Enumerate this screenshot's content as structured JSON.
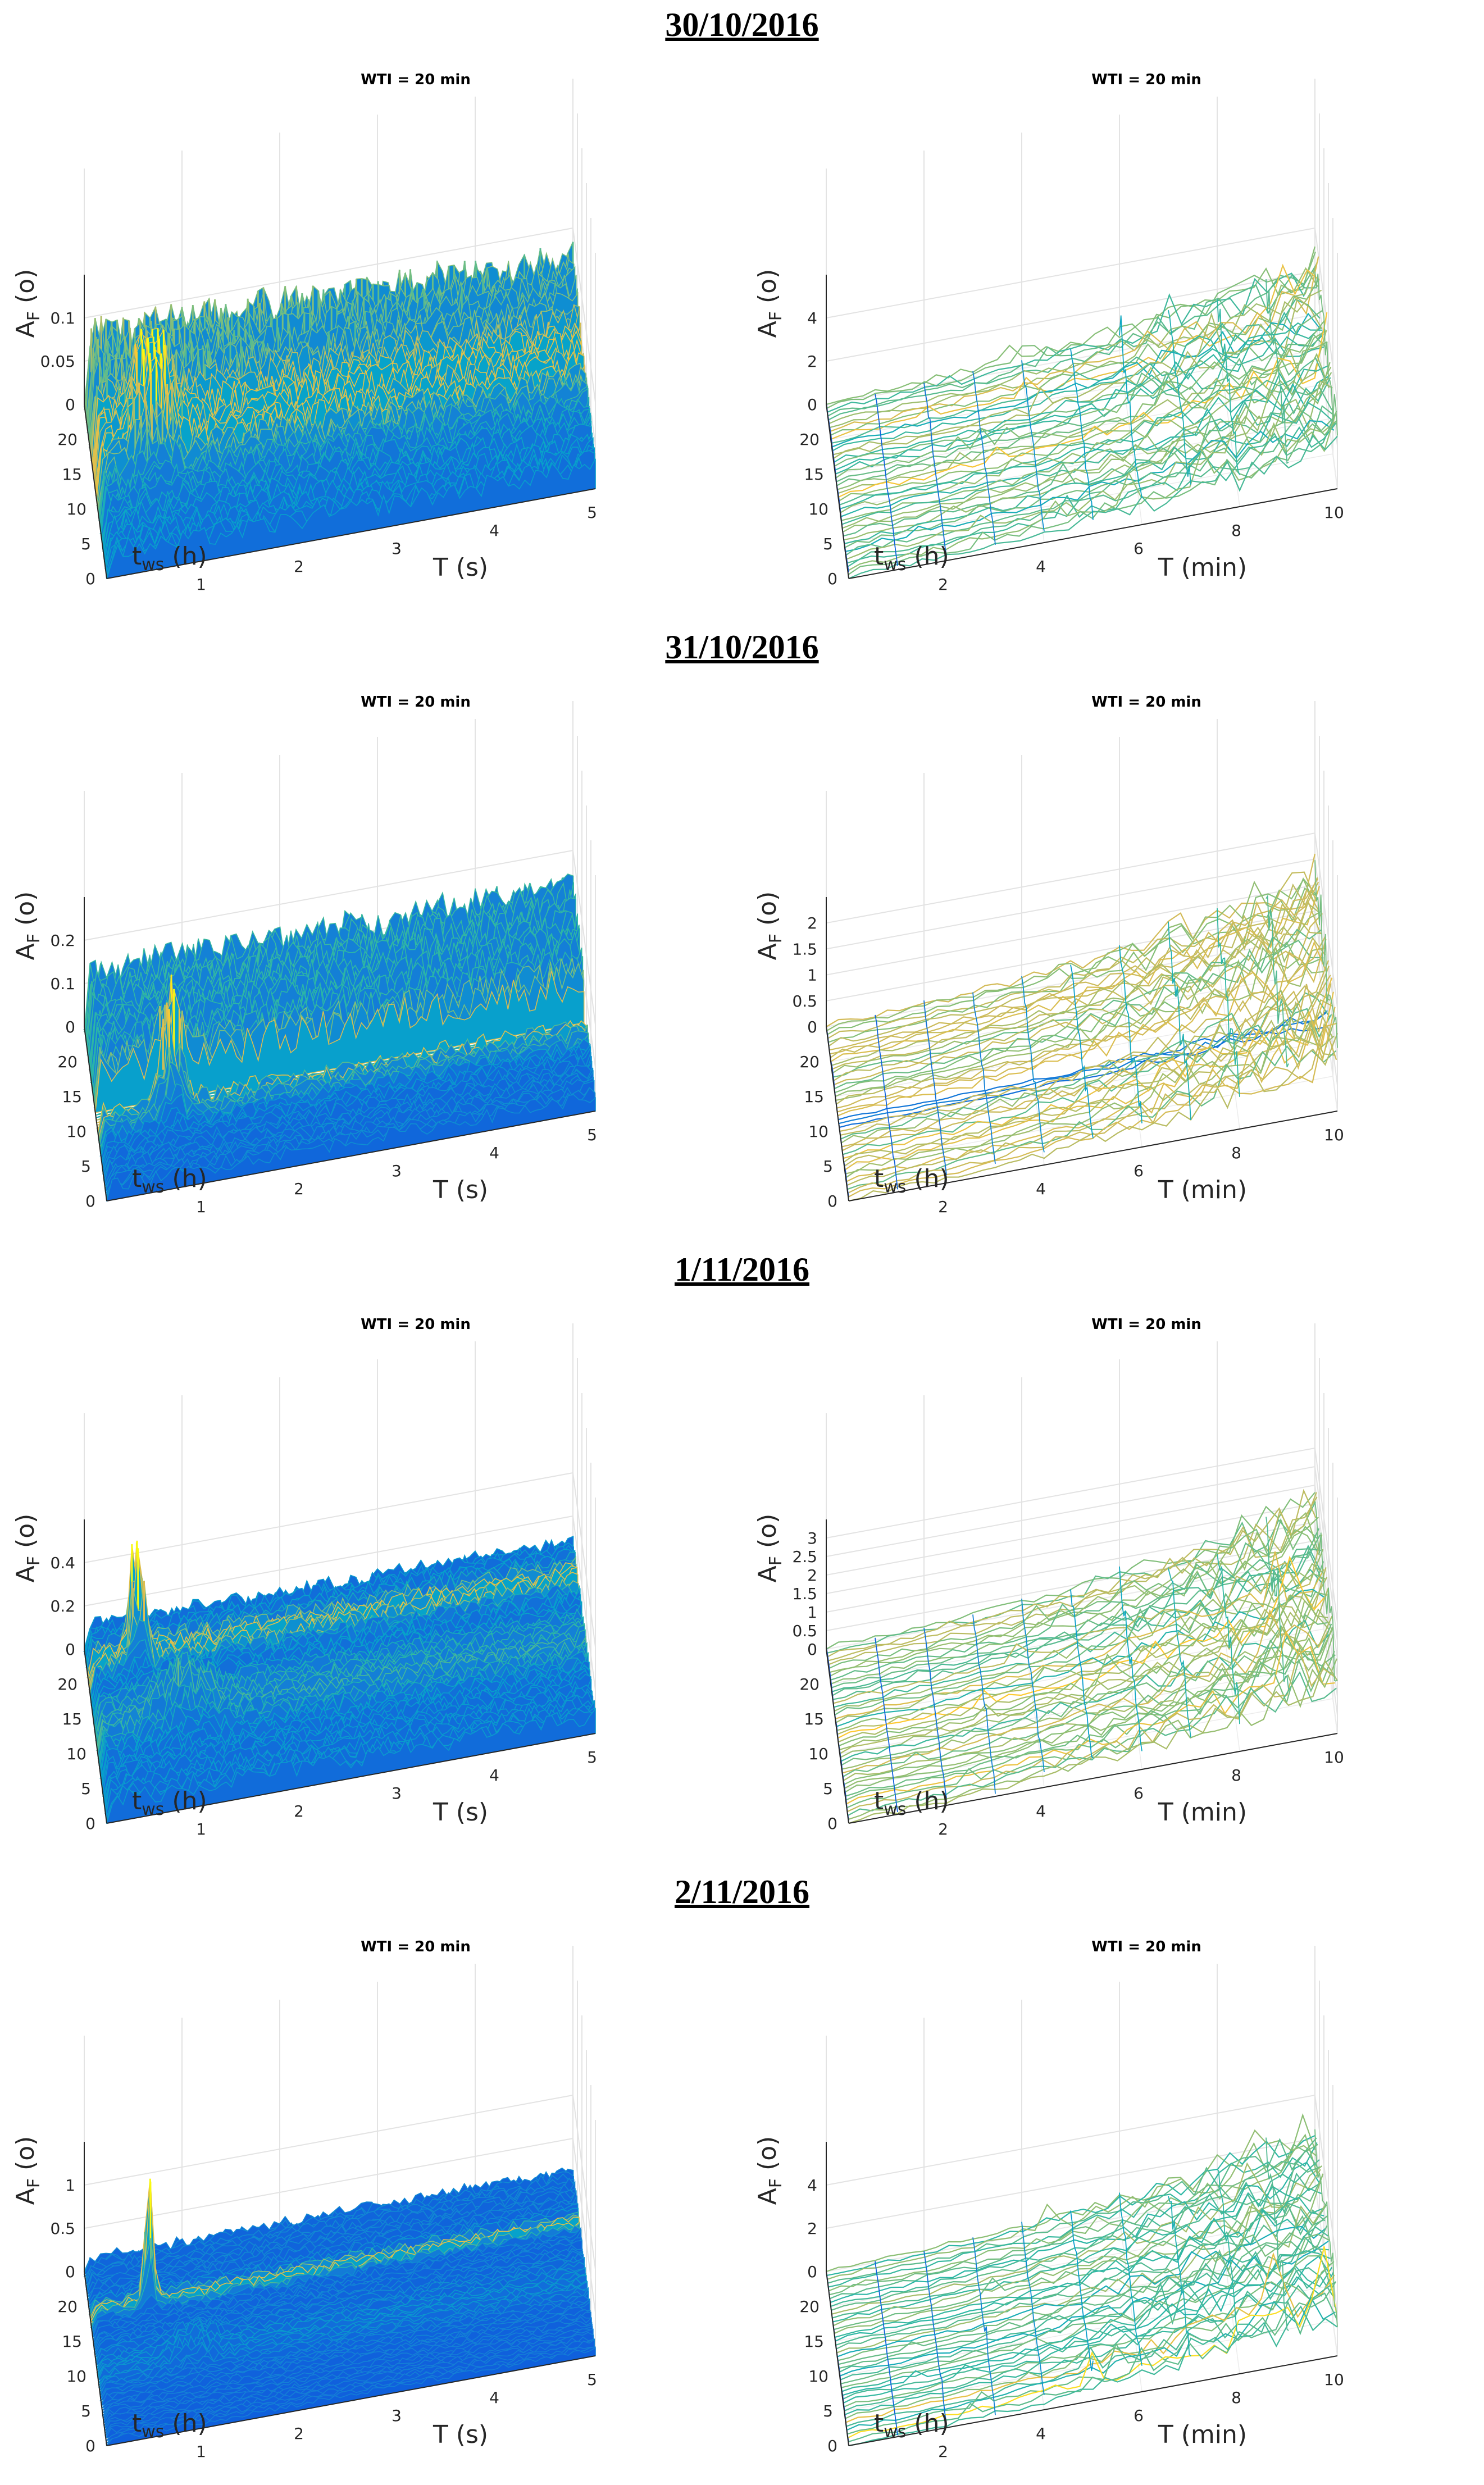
{
  "dates": [
    "30/10/2016",
    "31/10/2016",
    "1/11/2016",
    "2/11/2016"
  ],
  "colormap": [
    "#352a87",
    "#0f5cdd",
    "#1481d6",
    "#06a4ca",
    "#2eb7a4",
    "#87bf77",
    "#d1bb59",
    "#fec832",
    "#f9fb0e"
  ],
  "chart_data": [
    {
      "date": "30/10/2016",
      "type": "surface",
      "title": "WTI = 20 min",
      "zlabel": "A",
      "zlabel_sub": "F",
      "zlabel_unit": "(o)",
      "ylabel": "t",
      "ylabel_sub": "ws",
      "ylabel_unit": "(h)",
      "xlabel": "T (s)",
      "xlim": [
        0,
        5
      ],
      "ylim": [
        0,
        24
      ],
      "zlim": [
        0,
        0.11
      ],
      "xticks": [
        "1",
        "2",
        "3",
        "4",
        "5"
      ],
      "yticks": [
        "0",
        "5",
        "10",
        "15",
        "20"
      ],
      "zticks": [
        "0",
        "0.05",
        "0.1"
      ],
      "peak_value": 0.1
    },
    {
      "date": "30/10/2016",
      "type": "mesh",
      "title": "WTI = 20 min",
      "zlabel": "A",
      "zlabel_sub": "F",
      "zlabel_unit": "(o)",
      "ylabel": "t",
      "ylabel_sub": "ws",
      "ylabel_unit": "(h)",
      "xlabel": "T (min)",
      "xlim": [
        0,
        10
      ],
      "ylim": [
        0,
        24
      ],
      "zlim": [
        0,
        4
      ],
      "xticks": [
        "2",
        "4",
        "6",
        "8",
        "10"
      ],
      "yticks": [
        "0",
        "5",
        "10",
        "15",
        "20"
      ],
      "zticks": [
        "0",
        "2",
        "4"
      ],
      "peak_value": 4
    },
    {
      "date": "31/10/2016",
      "type": "surface",
      "title": "WTI = 20 min",
      "zlabel": "A",
      "zlabel_sub": "F",
      "zlabel_unit": "(o)",
      "ylabel": "t",
      "ylabel_sub": "ws",
      "ylabel_unit": "(h)",
      "xlabel": "T (s)",
      "xlim": [
        0,
        5
      ],
      "ylim": [
        0,
        24
      ],
      "zlim": [
        0,
        0.28
      ],
      "xticks": [
        "1",
        "2",
        "3",
        "4",
        "5"
      ],
      "yticks": [
        "0",
        "5",
        "10",
        "15",
        "20"
      ],
      "zticks": [
        "0",
        "0.1",
        "0.2"
      ],
      "peak_value": 0.25
    },
    {
      "date": "31/10/2016",
      "type": "mesh",
      "title": "WTI = 20 min",
      "zlabel": "A",
      "zlabel_sub": "F",
      "zlabel_unit": "(o)",
      "ylabel": "t",
      "ylabel_sub": "ws",
      "ylabel_unit": "(h)",
      "xlabel": "T (min)",
      "xlim": [
        0,
        10
      ],
      "ylim": [
        0,
        24
      ],
      "zlim": [
        0,
        2.2
      ],
      "xticks": [
        "2",
        "4",
        "6",
        "8",
        "10"
      ],
      "yticks": [
        "0",
        "5",
        "10",
        "15",
        "20"
      ],
      "zticks": [
        "0",
        "0.5",
        "1",
        "1.5",
        "2"
      ],
      "peak_value": 2.2
    },
    {
      "date": "1/11/2016",
      "type": "surface",
      "title": "WTI = 20 min",
      "zlabel": "A",
      "zlabel_sub": "F",
      "zlabel_unit": "(o)",
      "ylabel": "t",
      "ylabel_sub": "ws",
      "ylabel_unit": "(h)",
      "xlabel": "T (s)",
      "xlim": [
        0,
        5
      ],
      "ylim": [
        0,
        24
      ],
      "zlim": [
        0,
        0.42
      ],
      "xticks": [
        "1",
        "2",
        "3",
        "4",
        "5"
      ],
      "yticks": [
        "0",
        "5",
        "10",
        "15",
        "20"
      ],
      "zticks": [
        "0",
        "0.2",
        "0.4"
      ],
      "peak_value": 0.4
    },
    {
      "date": "1/11/2016",
      "type": "mesh",
      "title": "WTI = 20 min",
      "zlabel": "A",
      "zlabel_sub": "F",
      "zlabel_unit": "(o)",
      "ylabel": "t",
      "ylabel_sub": "ws",
      "ylabel_unit": "(h)",
      "xlabel": "T (min)",
      "xlim": [
        0,
        10
      ],
      "ylim": [
        0,
        24
      ],
      "zlim": [
        0,
        3.6
      ],
      "xticks": [
        "2",
        "4",
        "6",
        "8",
        "10"
      ],
      "yticks": [
        "0",
        "5",
        "10",
        "15",
        "20"
      ],
      "zticks": [
        "0",
        "0.5",
        "1",
        "1.5",
        "2",
        "2.5",
        "3"
      ],
      "peak_value": 3.3
    },
    {
      "date": "2/11/2016",
      "type": "surface",
      "title": "WTI = 20 min",
      "zlabel": "A",
      "zlabel_sub": "F",
      "zlabel_unit": "(o)",
      "ylabel": "t",
      "ylabel_sub": "ws",
      "ylabel_unit": "(h)",
      "xlabel": "T (s)",
      "xlim": [
        0,
        5
      ],
      "ylim": [
        0,
        24
      ],
      "zlim": [
        0,
        1.2
      ],
      "xticks": [
        "1",
        "2",
        "3",
        "4",
        "5"
      ],
      "yticks": [
        "0",
        "5",
        "10",
        "15",
        "20"
      ],
      "zticks": [
        "0",
        "0.5",
        "1"
      ],
      "peak_value": 0.9
    },
    {
      "date": "2/11/2016",
      "type": "mesh",
      "title": "WTI = 20 min",
      "zlabel": "A",
      "zlabel_sub": "F",
      "zlabel_unit": "(o)",
      "ylabel": "t",
      "ylabel_sub": "ws",
      "ylabel_unit": "(h)",
      "xlabel": "T (min)",
      "xlim": [
        0,
        10
      ],
      "ylim": [
        0,
        24
      ],
      "zlim": [
        0,
        4.5
      ],
      "xticks": [
        "2",
        "4",
        "6",
        "8",
        "10"
      ],
      "yticks": [
        "0",
        "5",
        "10",
        "15",
        "20"
      ],
      "zticks": [
        "0",
        "2",
        "4"
      ],
      "peak_value": 4.5
    }
  ]
}
